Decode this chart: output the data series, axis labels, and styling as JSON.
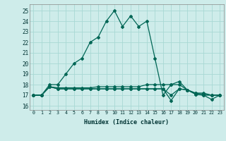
{
  "xlabel": "Humidex (Indice chaleur)",
  "background_color": "#ceecea",
  "grid_color": "#a8d8d4",
  "line_color": "#006655",
  "xlim": [
    -0.5,
    23.5
  ],
  "ylim": [
    15.6,
    25.6
  ],
  "xticks": [
    0,
    1,
    2,
    3,
    4,
    5,
    6,
    7,
    8,
    9,
    10,
    11,
    12,
    13,
    14,
    15,
    16,
    17,
    18,
    19,
    20,
    21,
    22,
    23
  ],
  "yticks": [
    16,
    17,
    18,
    19,
    20,
    21,
    22,
    23,
    24,
    25
  ],
  "series": [
    [
      17,
      17,
      18,
      18,
      19,
      20,
      20.5,
      22,
      22.5,
      24,
      25,
      23.5,
      24.5,
      23.5,
      24,
      20.5,
      17,
      18,
      18.3,
      17.5,
      17.2,
      17.2,
      17,
      17
    ],
    [
      17,
      17,
      17.8,
      17.7,
      17.7,
      17.7,
      17.7,
      17.7,
      17.8,
      17.8,
      17.8,
      17.8,
      17.8,
      17.8,
      18,
      18,
      18,
      18,
      18,
      17.5,
      17.2,
      17.1,
      17,
      17
    ],
    [
      17,
      17,
      17.8,
      17.6,
      17.6,
      17.6,
      17.6,
      17.6,
      17.6,
      17.6,
      17.6,
      17.6,
      17.6,
      17.6,
      17.6,
      17.6,
      17.6,
      17,
      17.6,
      17.5,
      17.1,
      17,
      16.6,
      17
    ],
    [
      17,
      17,
      17.8,
      17.6,
      17.6,
      17.6,
      17.6,
      17.6,
      17.6,
      17.6,
      17.6,
      17.6,
      17.6,
      17.6,
      17.6,
      17.6,
      17.6,
      16.5,
      17.6,
      17.5,
      17.1,
      17,
      17,
      17
    ]
  ]
}
